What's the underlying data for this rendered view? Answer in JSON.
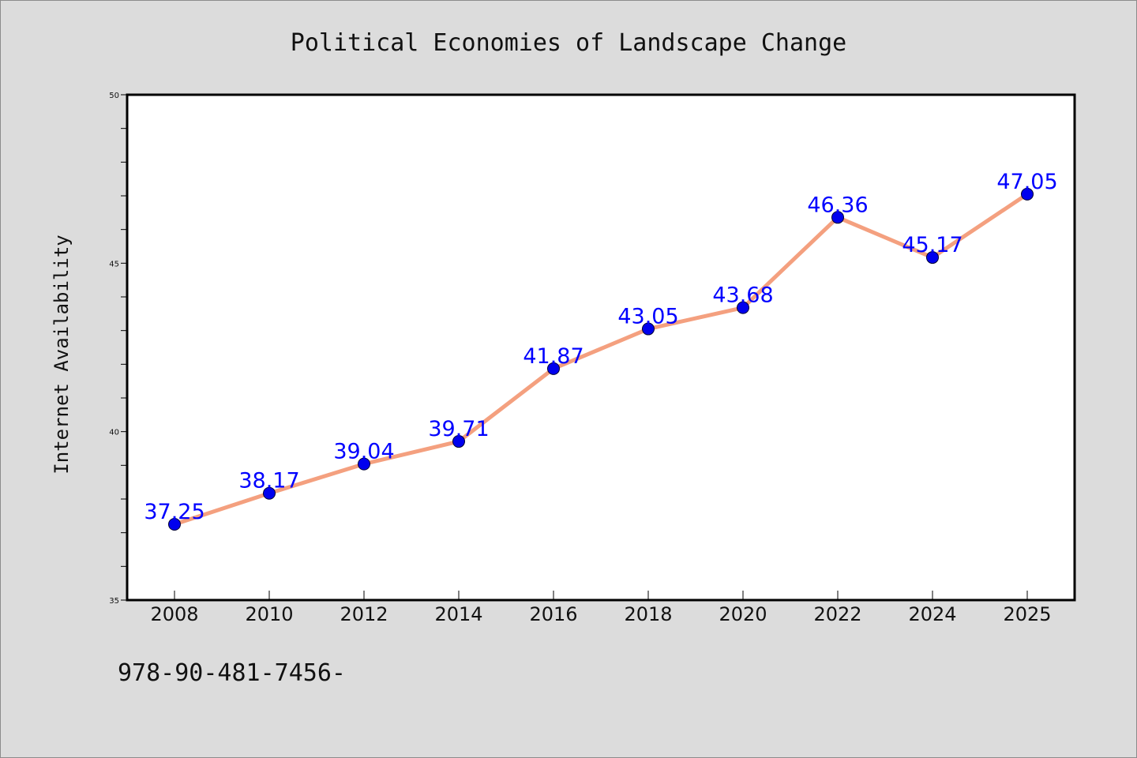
{
  "chart_data": {
    "type": "line",
    "title": "Political Economies of Landscape Change",
    "xlabel": "",
    "ylabel": "Internet Availability",
    "categories": [
      "2008",
      "2010",
      "2012",
      "2014",
      "2016",
      "2018",
      "2020",
      "2022",
      "2024",
      "2025"
    ],
    "series": [
      {
        "values": [
          37.25,
          38.17,
          39.04,
          39.71,
          41.87,
          43.05,
          43.68,
          46.36,
          45.17,
          47.05
        ],
        "data_labels": [
          "37.25",
          "38.17",
          "39.04",
          "39.71",
          "41.87",
          "43.05",
          "43.68",
          "46.36",
          "45.17",
          "47.05"
        ]
      }
    ],
    "ylim": [
      35,
      50
    ],
    "yticks": [
      "35",
      "40",
      "45",
      "50"
    ],
    "grid": false,
    "legend": "none",
    "colors": {
      "line": "#f4a07f",
      "marker": "#0000ee",
      "data_label": "#0000ff",
      "figure_background": "#dcdcdc",
      "plot_background": "#ffffff"
    }
  },
  "footnote": "978-90-481-7456-"
}
